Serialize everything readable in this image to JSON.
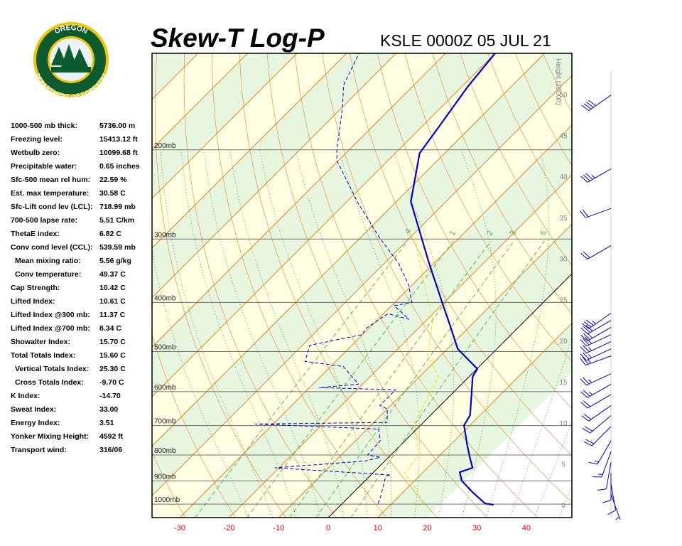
{
  "logo": {
    "top": "OREGON",
    "bottom": "DEPARTMENT OF FORESTRY"
  },
  "indices": [
    {
      "label": "1000-500 mb thick:",
      "value": "5736.00 m"
    },
    {
      "label": "Freezing level:",
      "value": "15413.12 ft"
    },
    {
      "label": "Wetbulb zero:",
      "value": "10099.68 ft"
    },
    {
      "label": "Precipitable water:",
      "value": "0.65 inches"
    },
    {
      "label": "Sfc-500 mean rel hum:",
      "value": "22.59 %"
    },
    {
      "label": "Est. max temperature:",
      "value": "30.58 C"
    },
    {
      "label": "Sfc-Lift cond lev (LCL):",
      "value": "718.99 mb"
    },
    {
      "label": "700-500 lapse rate:",
      "value": "5.51 C/km"
    },
    {
      "label": "ThetaE index:",
      "value": "6.82 C"
    },
    {
      "label": "Conv cond level (CCL):",
      "value": "539.59 mb"
    },
    {
      "label": "Mean mixing ratio:",
      "value": "5.56 g/kg",
      "indent": true
    },
    {
      "label": "Conv temperature:",
      "value": "49.37 C",
      "indent": true
    },
    {
      "label": "Cap Strength:",
      "value": "10.42 C"
    },
    {
      "label": "Lifted Index:",
      "value": "10.61 C"
    },
    {
      "label": "Lifted Index @300 mb:",
      "value": "11.37 C"
    },
    {
      "label": "Lifted Index @700 mb:",
      "value": "8.34 C"
    },
    {
      "label": "Showalter Index:",
      "value": "15.70 C"
    },
    {
      "label": "Total Totals Index:",
      "value": "15.60 C"
    },
    {
      "label": "Vertical Totals Index:",
      "value": "25.30 C",
      "indent": true
    },
    {
      "label": "Cross Totals Index:",
      "value": "-9.70 C",
      "indent": true
    },
    {
      "label": "K Index:",
      "value": "-14.70"
    },
    {
      "label": "Sweat Index:",
      "value": "33.00"
    },
    {
      "label": "Energy Index:",
      "value": "3.51"
    },
    {
      "label": "Yonker Mixing Height:",
      "value": "4592 ft"
    },
    {
      "label": "Transport wind:",
      "value": "316/06"
    }
  ],
  "chart_data": {
    "type": "skewt",
    "title": "Skew-T Log-P",
    "subtitle": "KSLE 0000Z 05 JUL 21",
    "xlim": [
      -35.6,
      49.2
    ],
    "xticks": [
      -30,
      -20,
      -10,
      0,
      10,
      20,
      30,
      40
    ],
    "ylim": [
      1063,
      129
    ],
    "log_scale": true,
    "pressure_ticks": [
      {
        "value": 1000,
        "label": "1000mb"
      },
      {
        "value": 900,
        "label": "900mb"
      },
      {
        "value": 800,
        "label": "800mb"
      },
      {
        "value": 700,
        "label": "700mb"
      },
      {
        "value": 600,
        "label": "600mb"
      },
      {
        "value": 500,
        "label": "500mb"
      },
      {
        "value": 400,
        "label": "400mb"
      },
      {
        "value": 300,
        "label": "300mb"
      },
      {
        "value": 200,
        "label": "200mb"
      }
    ],
    "height_label": "Height (1000ft)",
    "hlim": [
      -1.56,
      55
    ],
    "height_ticks": [
      0,
      5,
      10,
      15,
      20,
      25,
      30,
      35,
      40,
      45,
      50
    ],
    "mixing_ratios": [
      {
        "value": 0.4,
        "label": ".4"
      },
      1,
      2,
      3,
      5
    ],
    "series": [
      {
        "color": "#0000cc",
        "style": "solid",
        "pressure": [
          1003,
          997,
          947,
          899,
          865,
          848,
          814,
          763,
          699,
          668,
          560,
          541,
          494,
          441,
          409,
          334,
          253,
          203,
          185,
          150,
          129
        ],
        "values": [
          30.8,
          28.8,
          24.0,
          19.5,
          17.4,
          19.1,
          16.8,
          13.3,
          8.8,
          8.0,
          0.7,
          0.1,
          -7.9,
          -14.6,
          -19.1,
          -31.1,
          -47.1,
          -55.1,
          -56.2,
          -58.8,
          -60.0
        ]
      },
      {
        "color": "#0000cc",
        "style": "dashed",
        "pressure": [
          997,
          971,
          882,
          876,
          848,
          822,
          808,
          800,
          750,
          711,
          695,
          690,
          649,
          639,
          595,
          589,
          580,
          535,
          523,
          486,
          463,
          451,
          421,
          432,
          406,
          400,
          369,
          334,
          299,
          255,
          210,
          200,
          165,
          149,
          129
        ],
        "values": [
          7.2,
          6.5,
          3.3,
          4.0,
          -20.8,
          -3.9,
          -1.7,
          -4.7,
          -5.0,
          -7.7,
          -33.6,
          -7.3,
          -10.0,
          -12.2,
          -12.2,
          -28.0,
          -20.8,
          -27.5,
          -36.2,
          -38.5,
          -30.1,
          -30.6,
          -29.1,
          -23.7,
          -29.4,
          -26.5,
          -30.8,
          -37.3,
          -45.9,
          -57.4,
          -70.3,
          -72.5,
          -79.9,
          -84.2,
          -87.5
        ]
      },
      {
        "color": "#e6e600",
        "style": "dashed",
        "pressure": [
          997,
          941,
          870,
          800,
          692,
          560,
          510,
          434,
          357,
          294
        ],
        "values": [
          16.2,
          12.6,
          6.5,
          5.7,
          -1.7,
          -6.2,
          -12.5,
          -18.7,
          -29.4,
          -39.7
        ]
      }
    ],
    "winds": {
      "color": "#0000cc",
      "pressure": [
        156,
        218,
        261,
        309,
        420,
        434,
        448,
        463,
        478,
        494,
        510,
        553,
        580,
        608,
        639,
        669,
        703,
        750,
        788,
        827,
        868,
        911,
        956
      ],
      "direction": [
        235,
        240,
        250,
        240,
        235,
        240,
        240,
        245,
        245,
        245,
        250,
        245,
        240,
        240,
        235,
        230,
        225,
        210,
        200,
        190,
        180,
        170,
        160
      ],
      "speed": [
        40,
        35,
        20,
        20,
        35,
        30,
        30,
        30,
        25,
        25,
        25,
        25,
        25,
        20,
        20,
        20,
        20,
        15,
        15,
        10,
        10,
        10,
        5
      ]
    }
  }
}
